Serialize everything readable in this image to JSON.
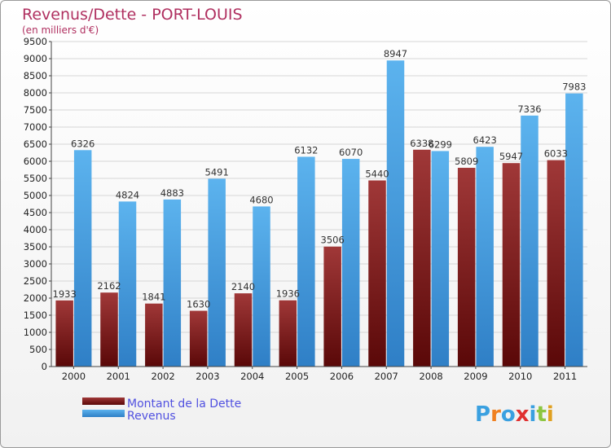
{
  "chart_data": {
    "type": "bar",
    "title": "Revenus/Dette - PORT-LOUIS",
    "subtitle": "(en milliers d'€)",
    "categories": [
      "2000",
      "2001",
      "2002",
      "2003",
      "2004",
      "2005",
      "2006",
      "2007",
      "2008",
      "2009",
      "2010",
      "2011"
    ],
    "series": [
      {
        "name": "Montant de la Dette",
        "color": "#8b2323",
        "values": [
          1933,
          2162,
          1841,
          1630,
          2140,
          1936,
          3506,
          5440,
          6338,
          5809,
          5947,
          6033
        ]
      },
      {
        "name": "Revenus",
        "color": "#4da6e8",
        "values": [
          6326,
          4824,
          4883,
          5491,
          4680,
          6132,
          6070,
          8947,
          6299,
          6423,
          7336,
          7983
        ]
      }
    ],
    "ylim": [
      0,
      9500
    ],
    "ytick_step": 500,
    "grid": true,
    "legend": "bottom-left"
  },
  "logo": {
    "text": "Proxiti",
    "letters": [
      "P",
      "r",
      "o",
      "x",
      "i",
      "t",
      "i"
    ],
    "colors": [
      "#3aa0e0",
      "#f08020",
      "#3aa0e0",
      "#e03030",
      "#3aa0e0",
      "#8cc640",
      "#e0a020"
    ]
  }
}
